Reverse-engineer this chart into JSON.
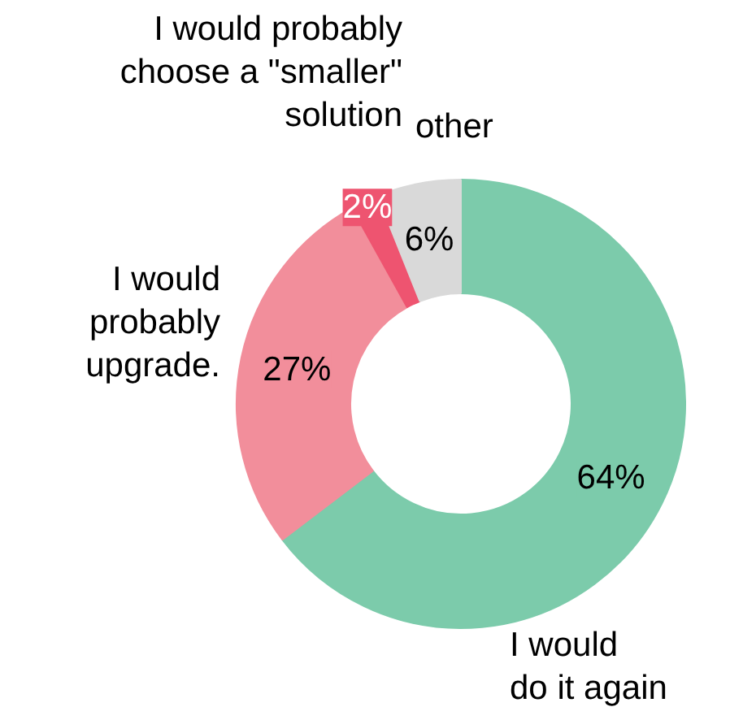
{
  "chart_data": {
    "type": "donut",
    "categories": [
      "I would\ndo it again",
      "I would\nprobably\nupgrade.",
      "I would probably\nchoose a \"smaller\"\nsolution",
      "other"
    ],
    "values": [
      64,
      27,
      2,
      6
    ],
    "value_labels": [
      "64%",
      "27%",
      "2%",
      "6%"
    ],
    "colors": [
      "#7ccbab",
      "#f28e9b",
      "#ee5470",
      "#d9d9d9"
    ]
  }
}
